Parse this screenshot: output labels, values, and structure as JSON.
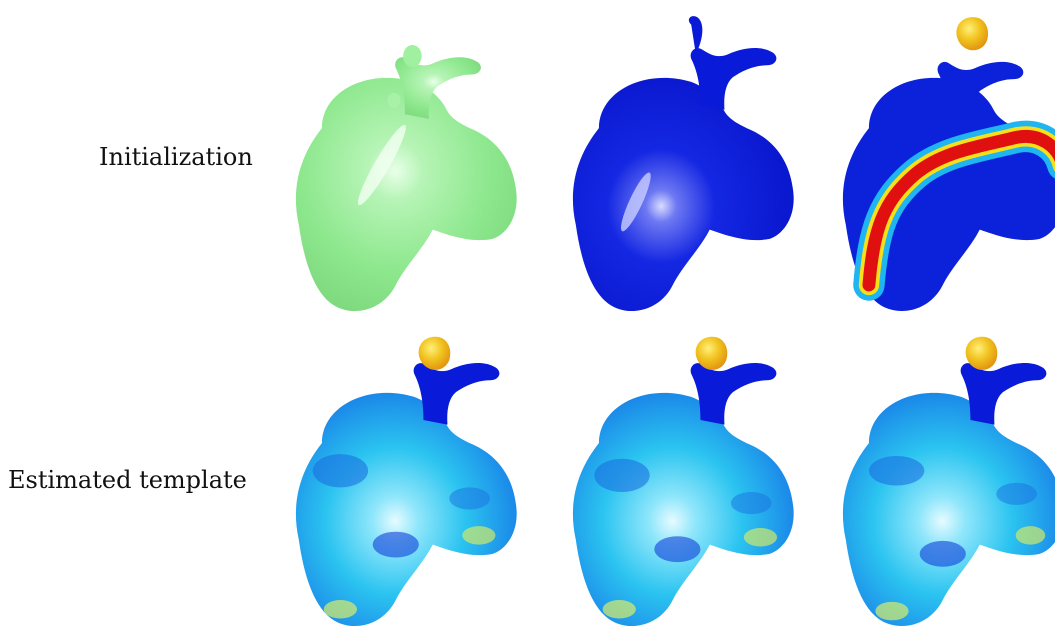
{
  "figure": {
    "rows": [
      {
        "label": "Initialization",
        "panels": [
          {
            "id": "init-mean",
            "colormap": "uniform-green"
          },
          {
            "id": "init-deform-1",
            "colormap": "mostly-blue"
          },
          {
            "id": "init-deform-2",
            "colormap": "jet-red-band"
          }
        ]
      },
      {
        "label": "Estimated template",
        "panels": [
          {
            "id": "est-1",
            "colormap": "jet-cyan-blue"
          },
          {
            "id": "est-2",
            "colormap": "jet-cyan-blue"
          },
          {
            "id": "est-3",
            "colormap": "jet-cyan-blue"
          }
        ]
      }
    ],
    "colors": {
      "green": "#8fea8f",
      "blue": "#0718d8",
      "cyan": "#27c6f2",
      "yellow": "#e8b21a",
      "red": "#e01010"
    }
  }
}
